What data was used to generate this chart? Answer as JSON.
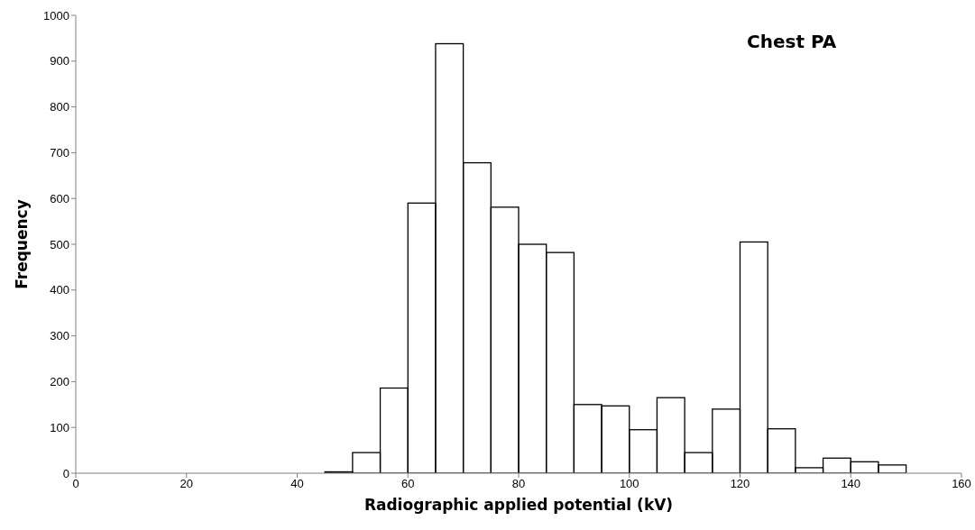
{
  "chart_data": {
    "type": "histogram",
    "title": "Chest PA",
    "xlabel": "Radiographic applied potential (kV)",
    "ylabel": "Frequency",
    "bins": [
      45,
      50,
      55,
      60,
      65,
      70,
      75,
      80,
      85,
      90,
      95,
      100,
      105,
      110,
      115,
      120,
      125,
      130,
      135,
      140,
      145,
      150
    ],
    "values": [
      3,
      45,
      186,
      590,
      938,
      678,
      581,
      500,
      482,
      150,
      147,
      95,
      165,
      45,
      140,
      505,
      97,
      12,
      33,
      25,
      18
    ],
    "color": "#000000",
    "xlim": [
      0,
      160
    ],
    "xticks": [
      0,
      20,
      40,
      60,
      80,
      100,
      120,
      140,
      160
    ],
    "ylim": [
      0,
      1000
    ],
    "yticks": [
      0,
      100,
      200,
      300,
      400,
      500,
      600,
      700,
      800,
      900,
      1000
    ],
    "grid": false
  }
}
